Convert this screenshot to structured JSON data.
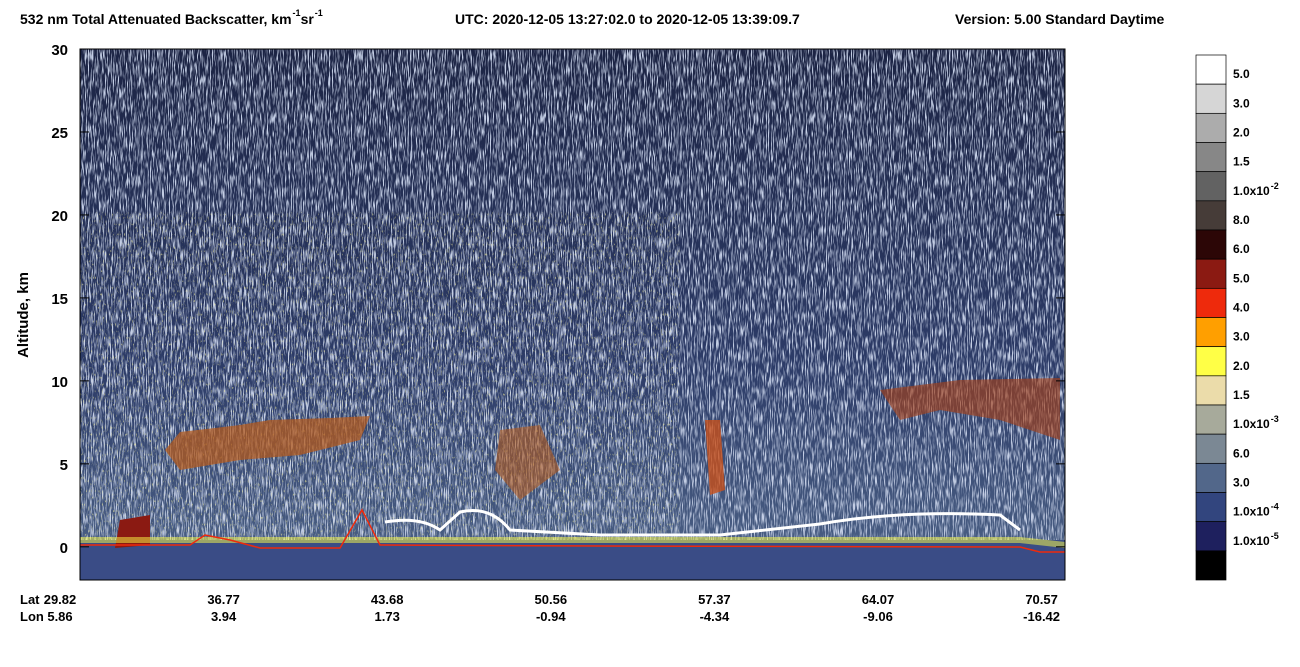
{
  "chart_data": {
    "type": "heatmap",
    "title": [
      "532 nm Total Attenuated Backscatter, km",
      "-1",
      " sr",
      "-1"
    ],
    "utc": "UTC:  2020-12-05 13:27:02.0  to  2020-12-05 13:39:09.7",
    "version": "Version: 5.00  Standard  Daytime",
    "ylabel": "Altitude, km",
    "ylim": [
      -2,
      30
    ],
    "yticks": [
      0,
      5,
      10,
      15,
      20,
      25,
      30
    ],
    "x_rows": [
      {
        "name": "Lat",
        "values": [
          29.82,
          36.77,
          43.68,
          50.56,
          57.37,
          64.07,
          70.57
        ]
      },
      {
        "name": "Lon",
        "values": [
          5.86,
          3.94,
          1.73,
          -0.94,
          -4.34,
          -9.06,
          -16.42
        ]
      }
    ],
    "colorbar": {
      "colors": [
        "#ffffff",
        "#d6d6d6",
        "#acacac",
        "#878787",
        "#626262",
        "#463c38",
        "#2c0606",
        "#8b1a12",
        "#ee2a0c",
        "#ff9f00",
        "#ffff46",
        "#ebdcaa",
        "#a7aa9b",
        "#7b8894",
        "#52678a",
        "#32457e",
        "#1e205e",
        "#000000"
      ],
      "labels": [
        "5.0",
        "3.0",
        "2.0",
        "1.5",
        {
          "base": "1.0x10",
          "exp": "-2"
        },
        "8.0",
        "6.0",
        "5.0",
        "4.0",
        "3.0",
        "2.0",
        "1.5",
        {
          "base": "1.0x10",
          "exp": "-3"
        },
        "6.0",
        "3.0",
        {
          "base": "1.0x10",
          "exp": "-4"
        },
        {
          "base": "1.0x10",
          "exp": "-5"
        }
      ]
    }
  }
}
